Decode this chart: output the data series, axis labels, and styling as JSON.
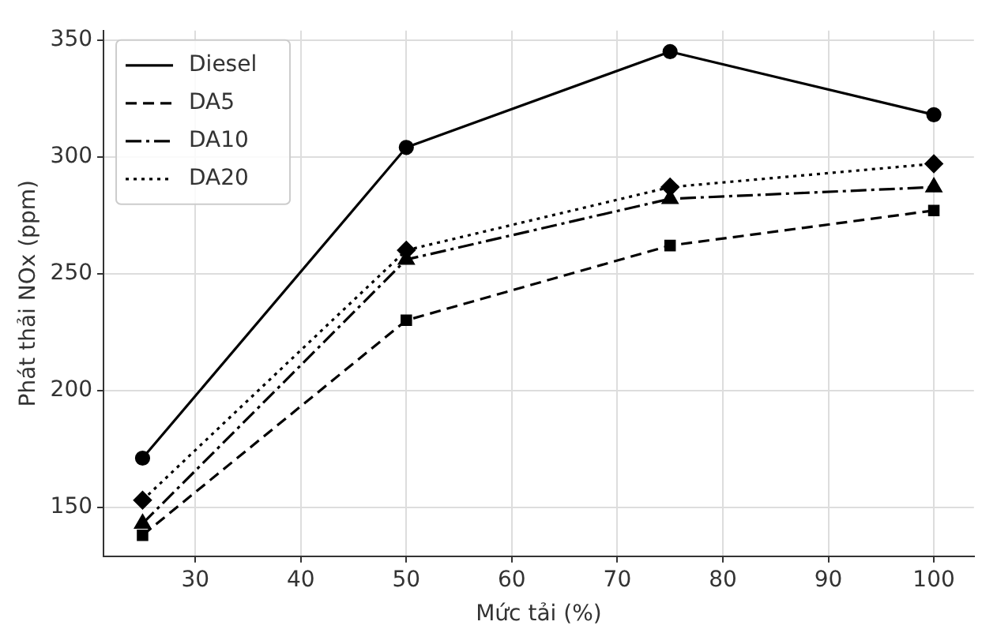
{
  "chart_data": {
    "type": "line",
    "xlabel": "Mức tải (%)",
    "ylabel": "Phát thải NOx (ppm)",
    "x": [
      25,
      50,
      75,
      100
    ],
    "series": [
      {
        "name": "Diesel",
        "color": "#000000",
        "marker": "circle",
        "line_style": "solid",
        "values": [
          171,
          304,
          345,
          318
        ]
      },
      {
        "name": "DA5",
        "color": "#000000",
        "marker": "square",
        "line_style": "dashed",
        "values": [
          138,
          230,
          262,
          277
        ]
      },
      {
        "name": "DA10",
        "color": "#000000",
        "marker": "triangle",
        "line_style": "dashdot",
        "values": [
          143,
          256,
          282,
          287
        ]
      },
      {
        "name": "DA20",
        "color": "#000000",
        "marker": "diamond",
        "line_style": "dotted",
        "values": [
          153,
          260,
          287,
          297
        ]
      }
    ],
    "xlim": [
      21.3,
      103.8
    ],
    "xticks": [
      30,
      40,
      50,
      60,
      70,
      80,
      90,
      100
    ],
    "ylim": [
      129,
      354
    ],
    "yticks": [
      150,
      200,
      250,
      300,
      350
    ],
    "grid": true,
    "legend": "top left"
  }
}
